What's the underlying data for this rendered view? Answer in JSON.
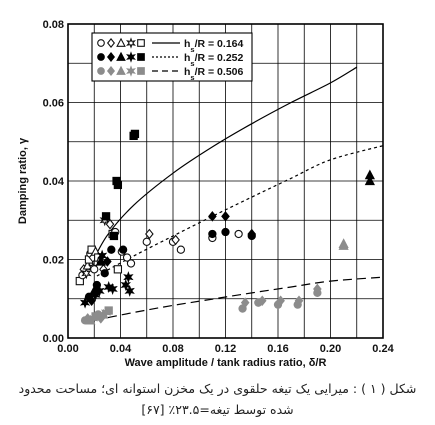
{
  "chart_data": {
    "type": "scatter",
    "xlabel": "Wave amplitude / tank radius ratio, δ/R",
    "ylabel": "Damping ratio, γ",
    "xlim": [
      0,
      0.24
    ],
    "ylim": [
      0,
      0.08
    ],
    "x_ticks": [
      "0.00",
      "0.04",
      "0.08",
      "0.12",
      "0.16",
      "0.20",
      "0.24"
    ],
    "y_ticks": [
      "0.00",
      "0.02",
      "0.04",
      "0.06",
      "0.08"
    ],
    "grid": true,
    "legend_position": "top-center",
    "legend": [
      {
        "label_prefix": "h",
        "label_sub": "s",
        "label_suffix": "/R = 0.164",
        "style": "open",
        "line": "solid"
      },
      {
        "label_prefix": "h",
        "label_sub": "s",
        "label_suffix": "/R = 0.252",
        "style": "black",
        "line": "dotted"
      },
      {
        "label_prefix": "h",
        "label_sub": "s",
        "label_suffix": "/R = 0.506",
        "style": "gray",
        "line": "dashed"
      }
    ],
    "series": [
      {
        "style": "open",
        "points": [
          {
            "x": 0.009,
            "y": 0.0145,
            "m": "square"
          },
          {
            "x": 0.011,
            "y": 0.016,
            "m": "circle"
          },
          {
            "x": 0.012,
            "y": 0.0175,
            "m": "diamond"
          },
          {
            "x": 0.014,
            "y": 0.0165,
            "m": "star"
          },
          {
            "x": 0.015,
            "y": 0.0185,
            "m": "triangle"
          },
          {
            "x": 0.016,
            "y": 0.02,
            "m": "square"
          },
          {
            "x": 0.017,
            "y": 0.0215,
            "m": "circle"
          },
          {
            "x": 0.018,
            "y": 0.0225,
            "m": "square"
          },
          {
            "x": 0.019,
            "y": 0.0205,
            "m": "diamond"
          },
          {
            "x": 0.019,
            "y": 0.018,
            "m": "star"
          },
          {
            "x": 0.02,
            "y": 0.0175,
            "m": "circle"
          },
          {
            "x": 0.021,
            "y": 0.022,
            "m": "triangle"
          },
          {
            "x": 0.023,
            "y": 0.0205,
            "m": "square"
          },
          {
            "x": 0.025,
            "y": 0.0195,
            "m": "circle"
          },
          {
            "x": 0.027,
            "y": 0.0175,
            "m": "diamond"
          },
          {
            "x": 0.028,
            "y": 0.03,
            "m": "star"
          },
          {
            "x": 0.032,
            "y": 0.029,
            "m": "diamond"
          },
          {
            "x": 0.034,
            "y": 0.0265,
            "m": "square"
          },
          {
            "x": 0.036,
            "y": 0.027,
            "m": "circle"
          },
          {
            "x": 0.038,
            "y": 0.0175,
            "m": "square"
          },
          {
            "x": 0.041,
            "y": 0.022,
            "m": "circle"
          },
          {
            "x": 0.045,
            "y": 0.0205,
            "m": "circle"
          },
          {
            "x": 0.048,
            "y": 0.019,
            "m": "circle"
          },
          {
            "x": 0.06,
            "y": 0.0245,
            "m": "circle"
          },
          {
            "x": 0.062,
            "y": 0.0265,
            "m": "diamond"
          },
          {
            "x": 0.08,
            "y": 0.0245,
            "m": "circle"
          },
          {
            "x": 0.082,
            "y": 0.025,
            "m": "diamond"
          },
          {
            "x": 0.086,
            "y": 0.0225,
            "m": "circle"
          },
          {
            "x": 0.11,
            "y": 0.0255,
            "m": "circle"
          },
          {
            "x": 0.13,
            "y": 0.0265,
            "m": "circle"
          }
        ]
      },
      {
        "style": "black",
        "points": [
          {
            "x": 0.013,
            "y": 0.009,
            "m": "star"
          },
          {
            "x": 0.016,
            "y": 0.0105,
            "m": "circle"
          },
          {
            "x": 0.018,
            "y": 0.0095,
            "m": "diamond"
          },
          {
            "x": 0.02,
            "y": 0.012,
            "m": "triangle"
          },
          {
            "x": 0.021,
            "y": 0.011,
            "m": "star"
          },
          {
            "x": 0.022,
            "y": 0.0135,
            "m": "circle"
          },
          {
            "x": 0.024,
            "y": 0.012,
            "m": "star"
          },
          {
            "x": 0.025,
            "y": 0.0195,
            "m": "triangle"
          },
          {
            "x": 0.026,
            "y": 0.021,
            "m": "star"
          },
          {
            "x": 0.028,
            "y": 0.0165,
            "m": "circle"
          },
          {
            "x": 0.029,
            "y": 0.031,
            "m": "square"
          },
          {
            "x": 0.03,
            "y": 0.0195,
            "m": "diamond"
          },
          {
            "x": 0.031,
            "y": 0.013,
            "m": "star"
          },
          {
            "x": 0.033,
            "y": 0.0225,
            "m": "circle"
          },
          {
            "x": 0.034,
            "y": 0.0125,
            "m": "star"
          },
          {
            "x": 0.035,
            "y": 0.026,
            "m": "square"
          },
          {
            "x": 0.037,
            "y": 0.04,
            "m": "square"
          },
          {
            "x": 0.038,
            "y": 0.039,
            "m": "square"
          },
          {
            "x": 0.042,
            "y": 0.0225,
            "m": "circle"
          },
          {
            "x": 0.044,
            "y": 0.0135,
            "m": "star"
          },
          {
            "x": 0.046,
            "y": 0.0155,
            "m": "star"
          },
          {
            "x": 0.047,
            "y": 0.012,
            "m": "star"
          },
          {
            "x": 0.05,
            "y": 0.0515,
            "m": "square"
          },
          {
            "x": 0.051,
            "y": 0.052,
            "m": "square"
          },
          {
            "x": 0.11,
            "y": 0.0265,
            "m": "circle"
          },
          {
            "x": 0.11,
            "y": 0.031,
            "m": "diamond"
          },
          {
            "x": 0.12,
            "y": 0.027,
            "m": "circle"
          },
          {
            "x": 0.12,
            "y": 0.031,
            "m": "diamond"
          },
          {
            "x": 0.14,
            "y": 0.026,
            "m": "circle"
          },
          {
            "x": 0.14,
            "y": 0.0265,
            "m": "diamond"
          },
          {
            "x": 0.23,
            "y": 0.04,
            "m": "triangle"
          },
          {
            "x": 0.23,
            "y": 0.0415,
            "m": "triangle"
          }
        ]
      },
      {
        "style": "gray",
        "points": [
          {
            "x": 0.013,
            "y": 0.0045,
            "m": "circle"
          },
          {
            "x": 0.015,
            "y": 0.005,
            "m": "diamond"
          },
          {
            "x": 0.017,
            "y": 0.0045,
            "m": "triangle"
          },
          {
            "x": 0.019,
            "y": 0.005,
            "m": "star"
          },
          {
            "x": 0.021,
            "y": 0.0055,
            "m": "square"
          },
          {
            "x": 0.023,
            "y": 0.006,
            "m": "circle"
          },
          {
            "x": 0.025,
            "y": 0.005,
            "m": "diamond"
          },
          {
            "x": 0.027,
            "y": 0.006,
            "m": "triangle"
          },
          {
            "x": 0.029,
            "y": 0.0065,
            "m": "star"
          },
          {
            "x": 0.031,
            "y": 0.007,
            "m": "square"
          },
          {
            "x": 0.133,
            "y": 0.0075,
            "m": "circle"
          },
          {
            "x": 0.135,
            "y": 0.009,
            "m": "diamond"
          },
          {
            "x": 0.145,
            "y": 0.009,
            "m": "circle"
          },
          {
            "x": 0.148,
            "y": 0.0095,
            "m": "diamond"
          },
          {
            "x": 0.16,
            "y": 0.0085,
            "m": "circle"
          },
          {
            "x": 0.162,
            "y": 0.0095,
            "m": "diamond"
          },
          {
            "x": 0.175,
            "y": 0.0085,
            "m": "circle"
          },
          {
            "x": 0.176,
            "y": 0.0095,
            "m": "diamond"
          },
          {
            "x": 0.19,
            "y": 0.0115,
            "m": "circle"
          },
          {
            "x": 0.19,
            "y": 0.0125,
            "m": "diamond"
          },
          {
            "x": 0.21,
            "y": 0.0235,
            "m": "triangle"
          },
          {
            "x": 0.21,
            "y": 0.024,
            "m": "triangle"
          }
        ]
      }
    ],
    "curves": [
      {
        "style": "open",
        "line": "solid",
        "points": [
          [
            0.018,
            0.019
          ],
          [
            0.03,
            0.0262
          ],
          [
            0.05,
            0.0338
          ],
          [
            0.08,
            0.042
          ],
          [
            0.11,
            0.0487
          ],
          [
            0.14,
            0.0546
          ],
          [
            0.17,
            0.06
          ],
          [
            0.2,
            0.065
          ],
          [
            0.22,
            0.069
          ]
        ]
      },
      {
        "style": "black",
        "line": "dotted",
        "points": [
          [
            0.022,
            0.0158
          ],
          [
            0.05,
            0.0209
          ],
          [
            0.08,
            0.026
          ],
          [
            0.11,
            0.031
          ],
          [
            0.14,
            0.0359
          ],
          [
            0.17,
            0.0407
          ],
          [
            0.2,
            0.0454
          ],
          [
            0.24,
            0.049
          ]
        ]
      },
      {
        "style": "gray",
        "line": "dashed",
        "points": [
          [
            0.02,
            0.0045
          ],
          [
            0.05,
            0.0065
          ],
          [
            0.08,
            0.0083
          ],
          [
            0.11,
            0.0099
          ],
          [
            0.14,
            0.0115
          ],
          [
            0.17,
            0.013
          ],
          [
            0.2,
            0.0145
          ],
          [
            0.24,
            0.0155
          ]
        ]
      }
    ],
    "colors": {
      "open": "#111111",
      "black": "#000000",
      "gray": "#8c8c8c"
    }
  },
  "caption": {
    "line1": "شکل ( ۱ ) : میرایی یک تیغه حلقوی در یک مخزن استوانه ای؛ مساحت محدود",
    "line2": "شده توسط تیغه=۲۳.۵٪ [۶۷]"
  }
}
